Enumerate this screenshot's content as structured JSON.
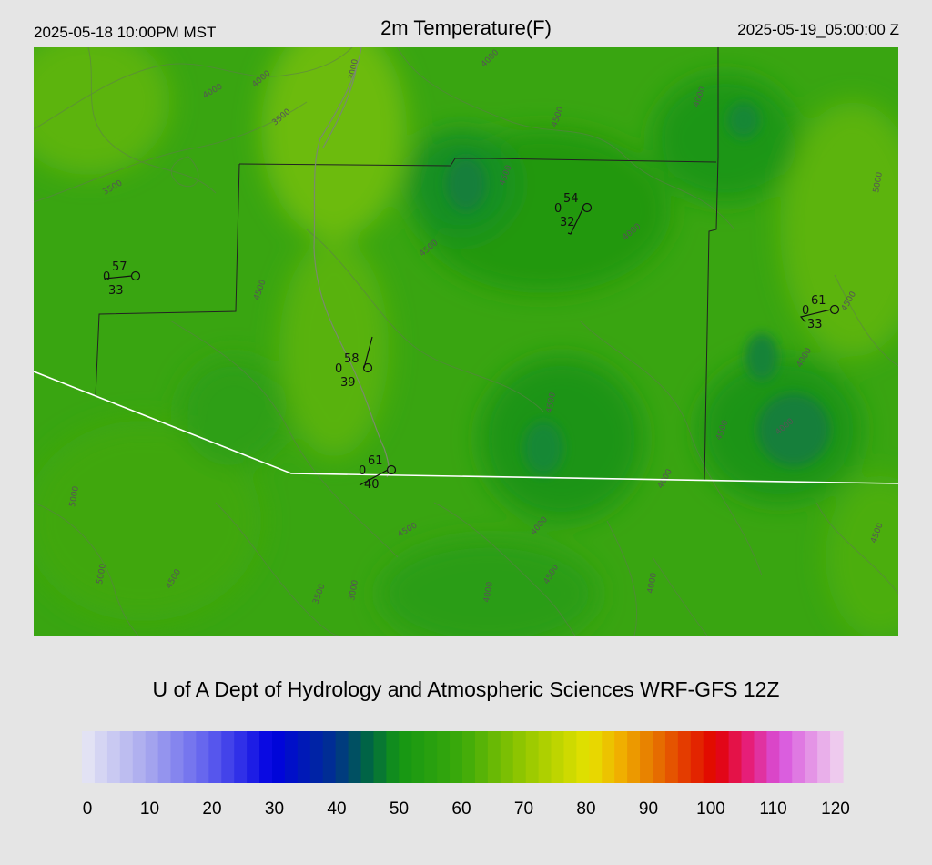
{
  "header": {
    "local_time": "2025-05-18 10:00PM MST",
    "title": "2m Temperature(F)",
    "utc_time": "2025-05-19_05:00:00 Z"
  },
  "credit": "U of A Dept of Hydrology and Atmospheric Sciences WRF-GFS 12Z",
  "colorbar": {
    "min": 0,
    "max": 120,
    "tick_labels": [
      "0",
      "10",
      "20",
      "30",
      "40",
      "50",
      "60",
      "70",
      "80",
      "90",
      "100",
      "110",
      "120"
    ]
  },
  "stations": [
    {
      "temp": "57",
      "dew": "33",
      "wind": "0"
    },
    {
      "temp": "54",
      "dew": "32",
      "wind": "0"
    },
    {
      "temp": "61",
      "dew": "33",
      "wind": "0"
    },
    {
      "temp": "58",
      "dew": "39",
      "wind": "0"
    },
    {
      "temp": "61",
      "dew": "40",
      "wind": "0"
    }
  ],
  "contour_labels": [
    "4000",
    "4000",
    "3000",
    "4000",
    "3500",
    "3500",
    "4500",
    "4500",
    "4500",
    "4000",
    "4000",
    "4500",
    "4500",
    "4500",
    "4000",
    "5000",
    "4500",
    "5000",
    "5000",
    "4500",
    "4000",
    "3500",
    "3000",
    "4000",
    "4000",
    "4500",
    "4000",
    "4500",
    "4500",
    "4000"
  ],
  "colors": {
    "background": "#e5e5e5",
    "boundary_white": "#ffffff",
    "county_line": "#222222",
    "field_green": "#2aa010"
  }
}
